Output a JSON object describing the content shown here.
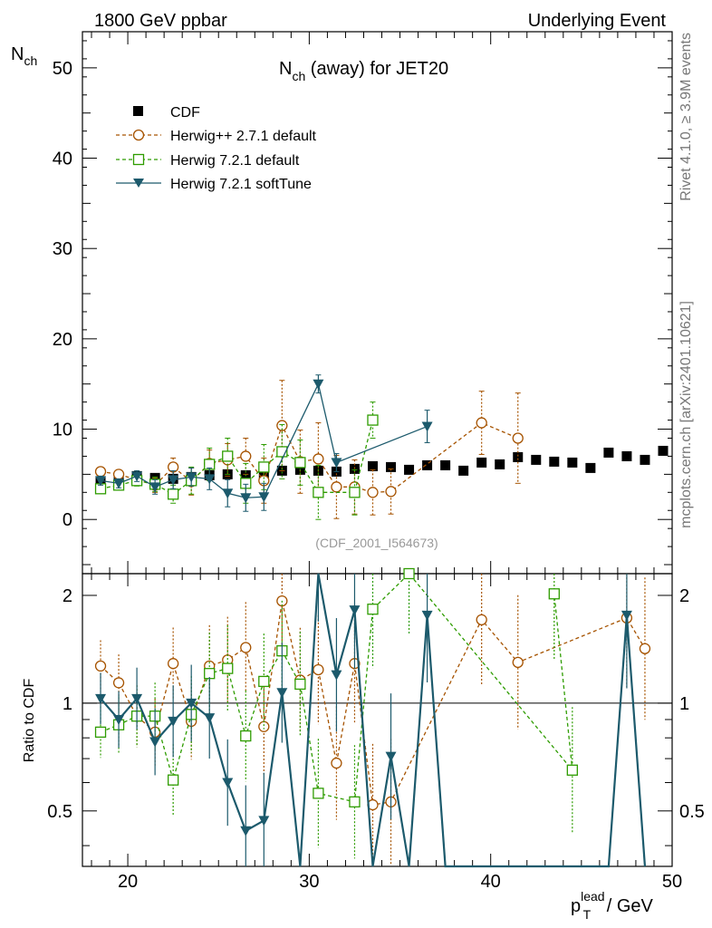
{
  "header": {
    "left": "1800 GeV ppbar",
    "right": "Underlying Event"
  },
  "side_text": {
    "top": "Rivet 4.1.0, ≥ 3.9M events",
    "bottom": "mcplots.cern.ch [arXiv:2401.10621]"
  },
  "chart_data": {
    "type": "scatter",
    "title_main": "N",
    "title_sub": "ch",
    "title_rest": " (away) for JET20",
    "ylabel_main": "N",
    "ylabel_sub": "ch",
    "ratio_ylabel": "Ratio to CDF",
    "xlabel_main": "p",
    "xlabel_sup": "lead",
    "xlabel_sub": "T",
    "xlabel_rest": " / GeV",
    "analysis_label": "(CDF_2001_I564673)",
    "xlim": [
      17.5,
      50
    ],
    "ylim": [
      -6,
      54
    ],
    "ratio_ylim": [
      0.35,
      2.3
    ],
    "x_ticks": [
      "20",
      "30",
      "40",
      "50"
    ],
    "y_ticks": [
      "0",
      "10",
      "20",
      "30",
      "40",
      "50"
    ],
    "ratio_ticks": [
      "0.5",
      "1",
      "2"
    ],
    "legend": [
      "CDF",
      "Herwig++ 2.7.1 default",
      "Herwig 7.2.1 default",
      "Herwig 7.2.1 softTune"
    ],
    "colors": {
      "cdf": "#000000",
      "herwigpp": "#a65300",
      "h7def": "#2e9c00",
      "h7soft": "#1c5a6c"
    },
    "data": {
      "x": [
        18.5,
        19.5,
        20.5,
        21.5,
        22.5,
        23.5,
        24.5,
        25.5,
        26.5,
        27.5,
        28.5,
        29.5,
        30.5,
        31.5,
        32.5,
        33.5,
        34.5,
        35.5,
        36.5,
        37.5,
        38.5,
        39.5,
        40.5,
        41.5,
        42.5,
        43.5,
        44.5,
        45.5,
        46.5,
        47.5,
        48.5,
        49.5
      ],
      "y": [
        4.2,
        4.4,
        4.8,
        4.6,
        4.5,
        4.7,
        4.9,
        5.0,
        4.9,
        5.0,
        5.4,
        5.5,
        5.4,
        5.3,
        5.6,
        5.9,
        5.8,
        5.5,
        6.0,
        6.0,
        5.4,
        6.3,
        6.1,
        6.9,
        6.6,
        6.4,
        6.3,
        5.7,
        7.4,
        7.0,
        6.6,
        7.6
      ]
    },
    "series": [
      {
        "name": "Herwig++ 2.7.1 default",
        "key": "herwigpp",
        "marker": "circle",
        "dashed": true,
        "x": [
          18.5,
          19.5,
          20.5,
          21.5,
          22.5,
          23.5,
          24.5,
          25.5,
          26.5,
          27.5,
          28.5,
          29.5,
          30.5,
          31.5,
          32.5,
          33.5,
          34.5,
          39.5,
          41.5
        ],
        "y": [
          5.3,
          5.0,
          4.4,
          3.8,
          5.8,
          4.2,
          6.2,
          6.6,
          7.0,
          4.3,
          10.4,
          6.4,
          6.7,
          3.6,
          3.6,
          3.0,
          3.1,
          10.7,
          9.0
        ],
        "err": [
          0.5,
          0.5,
          0.6,
          0.8,
          1.0,
          1.5,
          1.5,
          1.8,
          2.0,
          2.5,
          5.0,
          3.5,
          4.0,
          3.5,
          3.0,
          2.5,
          2.5,
          3.5,
          5.0
        ],
        "ratio": [
          1.27,
          1.14,
          0.92,
          0.83,
          1.29,
          0.89,
          1.27,
          1.32,
          1.43,
          0.86,
          1.93,
          1.16,
          1.24,
          0.68,
          1.29,
          0.52,
          0.53,
          1.71,
          1.3,
          1.73,
          1.42
        ],
        "ratio_x": [
          18.5,
          19.5,
          20.5,
          21.5,
          22.5,
          23.5,
          24.5,
          25.5,
          26.5,
          27.5,
          28.5,
          29.5,
          30.5,
          31.5,
          32.5,
          33.5,
          34.5,
          39.5,
          41.5,
          47.5,
          48.5
        ]
      },
      {
        "name": "Herwig 7.2.1 default",
        "key": "h7def",
        "marker": "square",
        "dashed": true,
        "x": [
          18.5,
          19.5,
          20.5,
          21.5,
          22.5,
          23.5,
          24.5,
          25.5,
          26.5,
          27.5,
          28.5,
          29.5,
          30.5,
          32.5,
          33.5
        ],
        "y": [
          3.4,
          3.8,
          4.3,
          3.9,
          2.8,
          4.3,
          6.1,
          7.0,
          4.0,
          5.8,
          7.5,
          6.3,
          3.0,
          3.0,
          11.0
        ],
        "err": [
          0.5,
          0.5,
          0.6,
          0.8,
          1.0,
          1.5,
          1.8,
          2.0,
          2.2,
          2.5,
          3.0,
          2.5,
          3.0,
          2.5,
          2.0
        ],
        "ratio": [
          0.83,
          0.87,
          0.92,
          0.92,
          0.61,
          0.93,
          1.21,
          1.25,
          0.81,
          1.15,
          1.4,
          1.13,
          0.56,
          0.53,
          1.83,
          2.3,
          0.65,
          2.02
        ],
        "ratio_x": [
          18.5,
          19.5,
          20.5,
          21.5,
          22.5,
          23.5,
          24.5,
          25.5,
          26.5,
          27.5,
          28.5,
          29.5,
          30.5,
          32.5,
          33.5,
          35.5,
          44.5,
          43.5
        ]
      },
      {
        "name": "Herwig 7.2.1 softTune",
        "key": "h7soft",
        "marker": "triangle",
        "dashed": false,
        "x": [
          18.5,
          19.5,
          20.5,
          21.5,
          22.5,
          23.5,
          24.5,
          25.5,
          26.5,
          27.5,
          30.5,
          31.5,
          36.5
        ],
        "y": [
          4.3,
          4.0,
          4.8,
          3.6,
          4.4,
          4.7,
          4.5,
          2.9,
          2.4,
          2.5,
          15.0,
          6.3,
          10.3
        ],
        "err": [
          0.5,
          0.5,
          0.6,
          0.8,
          1.0,
          1.0,
          1.2,
          1.5,
          1.5,
          1.5,
          1.0,
          1.0,
          1.8
        ],
        "ratio": [
          1.03,
          0.9,
          1.03,
          0.78,
          0.89,
          1.0,
          0.91,
          0.6,
          0.44,
          0.47,
          1.07,
          0.2,
          2.4,
          1.2,
          1.82,
          0.2,
          0.71,
          0.2,
          1.76,
          0.2,
          0.2,
          1.76,
          0.2
        ],
        "ratio_x": [
          18.5,
          19.5,
          20.5,
          21.5,
          22.5,
          23.5,
          24.5,
          25.5,
          26.5,
          27.5,
          28.5,
          29.5,
          30.5,
          31.5,
          32.5,
          33.5,
          34.5,
          35.5,
          36.5,
          37.5,
          46.5,
          47.5,
          48.5
        ]
      }
    ]
  }
}
